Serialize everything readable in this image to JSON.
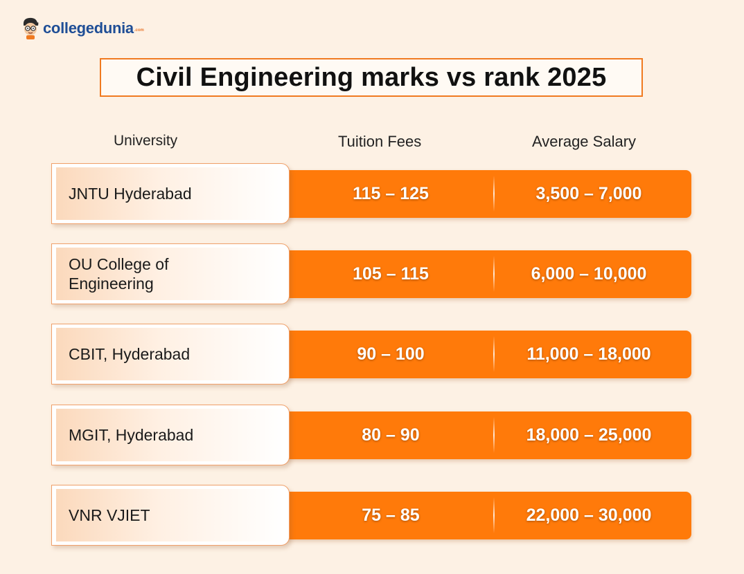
{
  "brand": {
    "name": "collegedunia",
    "suffix": ".com",
    "mascot_icon": "student-mascot-icon",
    "name_color": "#1f4e96"
  },
  "title": "Civil Engineering marks vs rank 2025",
  "columns": {
    "university": "University",
    "fees": "Tuition Fees",
    "salary": "Average Salary"
  },
  "rows": [
    {
      "university": "JNTU Hyderabad",
      "fees": "115 – 125",
      "salary": "3,500 – 7,000"
    },
    {
      "university": "OU College of Engineering",
      "fees": "105 – 115",
      "salary": "6,000 – 10,000"
    },
    {
      "university": "CBIT, Hyderabad",
      "fees": "90 – 100",
      "salary": "11,000 – 18,000"
    },
    {
      "university": "MGIT, Hyderabad",
      "fees": "80 – 90",
      "salary": "18,000 – 25,000"
    },
    {
      "university": "VNR VJIET",
      "fees": "75 – 85",
      "salary": "22,000 – 30,000"
    }
  ],
  "colors": {
    "background": "#fdf1e4",
    "accent": "#ff7a0a",
    "title_border": "#f07a20"
  }
}
